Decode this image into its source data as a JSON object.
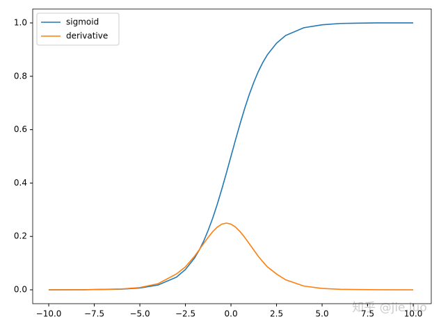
{
  "chart_data": {
    "type": "line",
    "x": [
      -10,
      -8,
      -6,
      -5,
      -4,
      -3,
      -2.5,
      -2,
      -1.75,
      -1.5,
      -1.25,
      -1,
      -0.75,
      -0.5,
      -0.25,
      0,
      0.25,
      0.5,
      0.75,
      1,
      1.25,
      1.5,
      1.75,
      2,
      2.5,
      3,
      4,
      5,
      6,
      8,
      10
    ],
    "series": [
      {
        "name": "sigmoid",
        "color": "#1f77b4",
        "values": [
          0.0,
          0.0003,
          0.0025,
          0.0067,
          0.018,
          0.047,
          0.076,
          0.119,
          0.148,
          0.182,
          0.223,
          0.269,
          0.321,
          0.378,
          0.438,
          0.5,
          0.562,
          0.622,
          0.679,
          0.731,
          0.777,
          0.818,
          0.852,
          0.881,
          0.924,
          0.953,
          0.982,
          0.993,
          0.998,
          1.0,
          1.0
        ]
      },
      {
        "name": "derivative",
        "color": "#ff7f0e",
        "values": [
          0.0001,
          0.0004,
          0.0032,
          0.0085,
          0.0229,
          0.0592,
          0.086,
          0.1255,
          0.1491,
          0.1733,
          0.1966,
          0.2179,
          0.235,
          0.2461,
          0.25,
          0.2461,
          0.235,
          0.2179,
          0.1966,
          0.1733,
          0.1491,
          0.1255,
          0.105,
          0.086,
          0.0592,
          0.0374,
          0.014,
          0.0052,
          0.0019,
          0.0003,
          0.0
        ]
      }
    ],
    "xlim": [
      -10.88,
      10.99
    ],
    "ylim": [
      -0.052,
      1.052
    ],
    "xticks": [
      {
        "value": -10,
        "label": "−10.0"
      },
      {
        "value": -7.5,
        "label": "−7.5"
      },
      {
        "value": -5,
        "label": "−5.0"
      },
      {
        "value": -2.5,
        "label": "−2.5"
      },
      {
        "value": 0,
        "label": "0.0"
      },
      {
        "value": 2.5,
        "label": "2.5"
      },
      {
        "value": 5,
        "label": "5.0"
      },
      {
        "value": 7.5,
        "label": "7.5"
      },
      {
        "value": 10,
        "label": "10.0"
      }
    ],
    "yticks": [
      {
        "value": 0,
        "label": "0.0"
      },
      {
        "value": 0.2,
        "label": "0.2"
      },
      {
        "value": 0.4,
        "label": "0.4"
      },
      {
        "value": 0.6,
        "label": "0.6"
      },
      {
        "value": 0.8,
        "label": "0.8"
      },
      {
        "value": 1,
        "label": "1.0"
      }
    ],
    "legend": "upper left",
    "watermark": "知乎 @jie.luo"
  }
}
